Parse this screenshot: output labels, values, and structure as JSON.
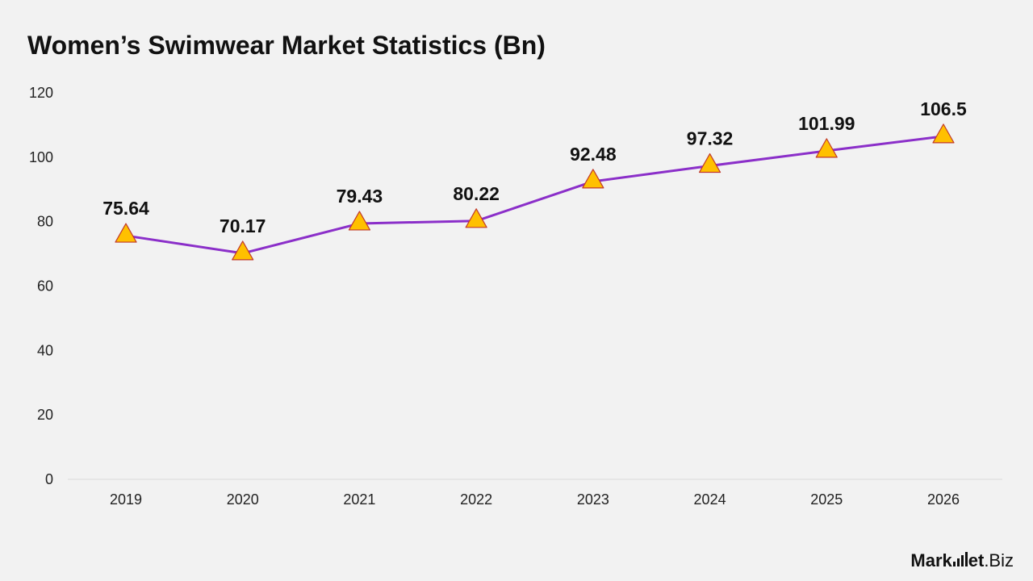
{
  "chart_data": {
    "type": "line",
    "title": "Women’s Swimwear Market Statistics (Bn)",
    "categories": [
      "2019",
      "2020",
      "2021",
      "2022",
      "2023",
      "2024",
      "2025",
      "2026"
    ],
    "series": [
      {
        "values": [
          75.64,
          70.17,
          79.43,
          80.22,
          92.48,
          97.32,
          101.99,
          106.5
        ],
        "labels": [
          "75.64",
          "70.17",
          "79.43",
          "80.22",
          "92.48",
          "97.32",
          "101.99",
          "106.5"
        ]
      }
    ],
    "ylim": [
      0,
      120
    ],
    "yticks": [
      "0",
      "20",
      "40",
      "60",
      "80",
      "100",
      "120"
    ],
    "grid": false,
    "legend": "none",
    "marker": "triangle",
    "colors": {
      "line": "#8b2fc9",
      "marker_fill": "#ffc000",
      "marker_stroke": "#c0392b"
    }
  },
  "brand": {
    "part1": "Mark",
    "part2": "et",
    "part3": ".Biz"
  }
}
